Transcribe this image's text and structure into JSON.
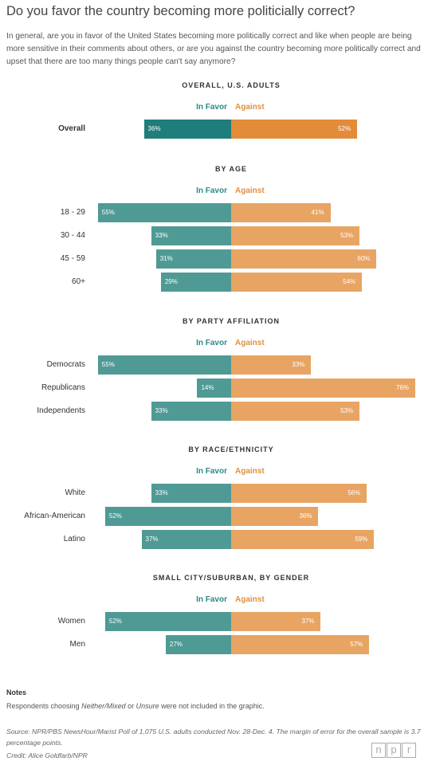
{
  "title": "Do you favor the country becoming more politicially correct?",
  "subtitle": "In general, are you in favor of the United States becoming more politically correct and like when people are being more sensitive in their comments about others, or are you against the country becoming more politically correct and upset that there are too many things people can't say anymore?",
  "legend": {
    "favor": "In Favor",
    "against": "Against"
  },
  "colors": {
    "favor": "#4f9a95",
    "against": "#e8a463",
    "favor_overall": "#1f7d7b",
    "against_overall": "#e28c3a",
    "favor_legend": "#2c8a86",
    "against_legend": "#e0913f"
  },
  "chart_data": {
    "type": "bar",
    "orientation": "horizontal-diverging",
    "series_names": [
      "In Favor",
      "Against"
    ],
    "value_suffix": "%",
    "groups": [
      {
        "title": "OVERALL, U.S. ADULTS",
        "rows": [
          {
            "label": "Overall",
            "favor": 36,
            "against": 52
          }
        ]
      },
      {
        "title": "BY AGE",
        "rows": [
          {
            "label": "18 - 29",
            "favor": 55,
            "against": 41
          },
          {
            "label": "30 - 44",
            "favor": 33,
            "against": 53
          },
          {
            "label": "45 - 59",
            "favor": 31,
            "against": 60
          },
          {
            "label": "60+",
            "favor": 29,
            "against": 54
          }
        ]
      },
      {
        "title": "BY PARTY AFFILIATION",
        "rows": [
          {
            "label": "Democrats",
            "favor": 55,
            "against": 33
          },
          {
            "label": "Republicans",
            "favor": 14,
            "against": 76
          },
          {
            "label": "Independents",
            "favor": 33,
            "against": 53
          }
        ]
      },
      {
        "title": "BY RACE/ETHNICITY",
        "rows": [
          {
            "label": "White",
            "favor": 33,
            "against": 56
          },
          {
            "label": "African-American",
            "favor": 52,
            "against": 36
          },
          {
            "label": "Latino",
            "favor": 37,
            "against": 59
          }
        ]
      },
      {
        "title": "SMALL CITY/SUBURBAN, BY GENDER",
        "rows": [
          {
            "label": "Women",
            "favor": 52,
            "against": 37
          },
          {
            "label": "Men",
            "favor": 27,
            "against": 57
          }
        ]
      }
    ]
  },
  "notes": {
    "heading": "Notes",
    "text_before": "Respondents choosing ",
    "term1": "Neither/Mixed",
    "text_middle": " or ",
    "term2": "Unsure",
    "text_after": " were not included in the graphic."
  },
  "source": "Source: NPR/PBS NewsHour/Marist Poll of 1,075 U.S. adults conducted Nov. 28-Dec. 4. The margin of error for the overall sample is 3.7 percentage points.",
  "credit": "Credit: Alice Goldfarb/NPR",
  "logo": {
    "letters": [
      "n",
      "p",
      "r"
    ]
  }
}
